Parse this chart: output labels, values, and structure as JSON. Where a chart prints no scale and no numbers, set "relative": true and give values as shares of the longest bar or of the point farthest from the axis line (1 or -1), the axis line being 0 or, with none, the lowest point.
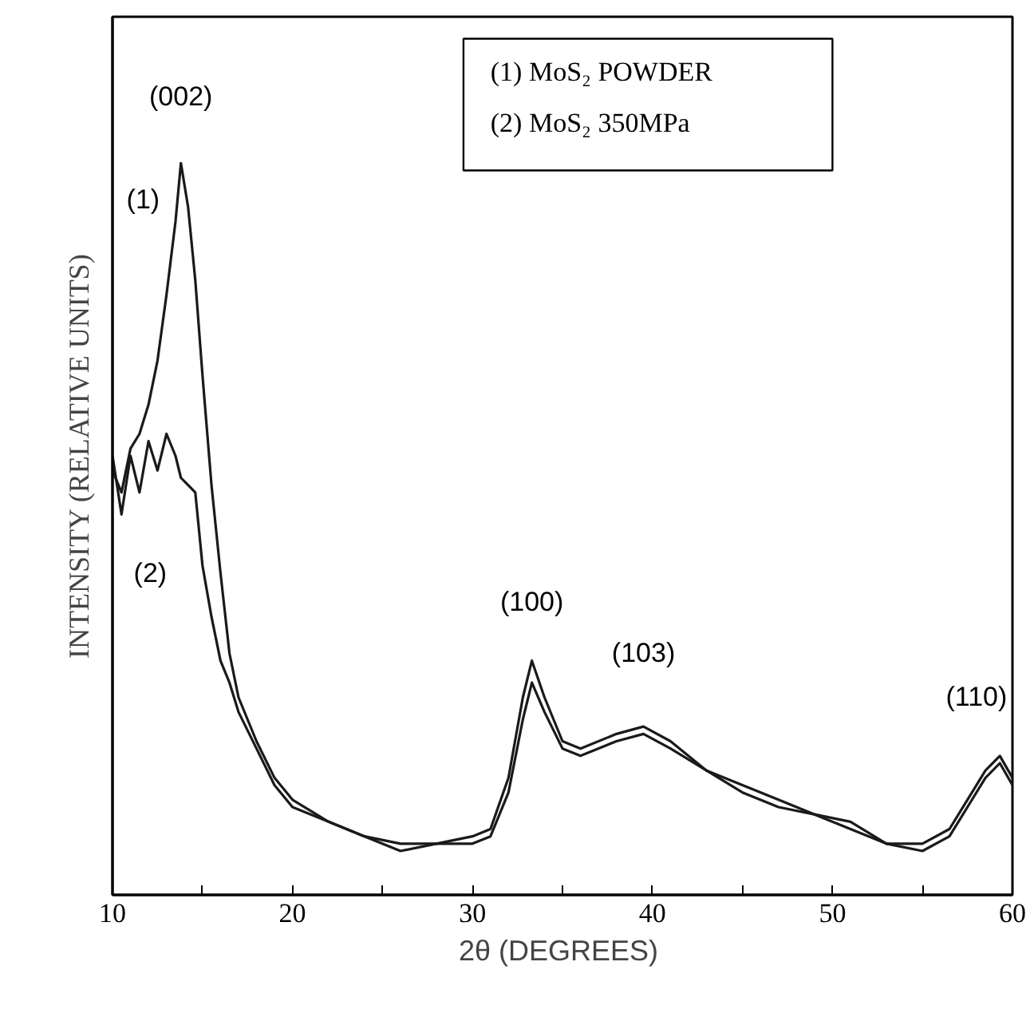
{
  "chart_data": {
    "type": "line",
    "relative": true,
    "xlabel": "2θ  (DEGREES)",
    "ylabel": "INTENSITY (RELATIVE UNITS)",
    "x": [
      10,
      10.5,
      11,
      11.5,
      12,
      12.5,
      13,
      13.5,
      13.8,
      14.2,
      14.6,
      15,
      15.5,
      16,
      16.5,
      17,
      18,
      19,
      20,
      22,
      24,
      26,
      28,
      30,
      31,
      32,
      32.8,
      33.3,
      34,
      35,
      36,
      38,
      39.5,
      41,
      43,
      45,
      47,
      49,
      51,
      53,
      55,
      56.5,
      57.5,
      58.5,
      59.3,
      60
    ],
    "series": [
      {
        "name": "(1)",
        "color": "#1a1a1a",
        "values": [
          0.58,
          0.55,
          0.61,
          0.63,
          0.67,
          0.73,
          0.82,
          0.92,
          1.0,
          0.94,
          0.84,
          0.71,
          0.56,
          0.44,
          0.33,
          0.27,
          0.21,
          0.16,
          0.13,
          0.1,
          0.08,
          0.07,
          0.07,
          0.08,
          0.09,
          0.16,
          0.27,
          0.32,
          0.27,
          0.21,
          0.2,
          0.22,
          0.23,
          0.21,
          0.17,
          0.15,
          0.13,
          0.11,
          0.1,
          0.07,
          0.07,
          0.09,
          0.13,
          0.17,
          0.19,
          0.16
        ]
      },
      {
        "name": "(2)",
        "color": "#1a1a1a",
        "values": [
          0.6,
          0.52,
          0.6,
          0.55,
          0.62,
          0.58,
          0.63,
          0.6,
          0.57,
          0.56,
          0.55,
          0.45,
          0.38,
          0.32,
          0.29,
          0.25,
          0.2,
          0.15,
          0.12,
          0.1,
          0.08,
          0.06,
          0.07,
          0.07,
          0.08,
          0.14,
          0.24,
          0.29,
          0.25,
          0.2,
          0.19,
          0.21,
          0.22,
          0.2,
          0.17,
          0.14,
          0.12,
          0.11,
          0.09,
          0.07,
          0.06,
          0.08,
          0.12,
          0.16,
          0.18,
          0.15
        ]
      }
    ],
    "xlim": [
      10,
      60
    ],
    "xticks": [
      10,
      {
        "value": 15,
        "label": null
      },
      20,
      {
        "value": 25,
        "label": null
      },
      30,
      {
        "value": 35,
        "label": null
      },
      40,
      {
        "value": 45,
        "label": null
      },
      50,
      {
        "value": 55,
        "label": null
      },
      60
    ],
    "tick_labels": "x",
    "grid": false,
    "line_style": "solid",
    "marker": "none",
    "annotations": [
      "(002)",
      "(100)",
      "(103)",
      "(110)",
      "(1)  MoS₂ POWDER",
      "(2)  MoS₂ 350MPa"
    ]
  }
}
